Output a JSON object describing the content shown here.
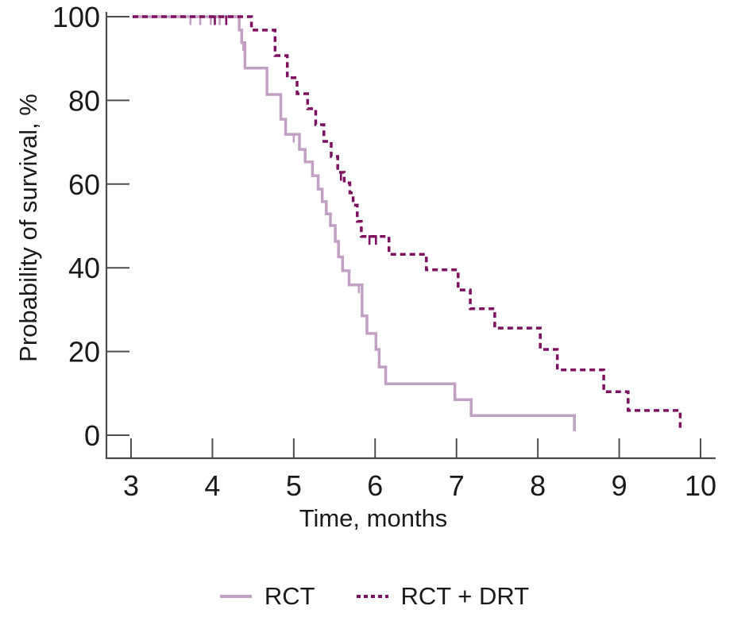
{
  "figure": {
    "kind": "kaplan-meier-survival-plot",
    "legend": [
      {
        "label": "RCT",
        "line_style": "solid",
        "color": "#c2a0c3"
      },
      {
        "label": "RCT + DRT",
        "line_style": "dashed",
        "color": "#7d1160"
      }
    ]
  },
  "chart_data": {
    "type": "line",
    "variant": "kaplan_meier_step",
    "title": "",
    "xlabel": "Time, months",
    "ylabel": "Probability of survival, %",
    "xlim": [
      3,
      10
    ],
    "ylim": [
      0,
      100
    ],
    "x_ticks": [
      3,
      4,
      5,
      6,
      7,
      8,
      9,
      10
    ],
    "y_ticks": [
      0,
      20,
      40,
      60,
      80,
      100
    ],
    "grid": false,
    "legend_position": "bottom",
    "series": [
      {
        "name": "RCT",
        "color": "#c2a0c3",
        "line_style": "solid",
        "points": [
          [
            3.02,
            100
          ],
          [
            4.33,
            96.8
          ],
          [
            4.36,
            93.8
          ],
          [
            4.4,
            87.7
          ],
          [
            4.67,
            81.4
          ],
          [
            4.84,
            75.5
          ],
          [
            4.9,
            71.9
          ],
          [
            5.07,
            68.3
          ],
          [
            5.14,
            65.3
          ],
          [
            5.23,
            62.0
          ],
          [
            5.3,
            58.8
          ],
          [
            5.35,
            55.8
          ],
          [
            5.4,
            52.9
          ],
          [
            5.45,
            50.1
          ],
          [
            5.51,
            46.3
          ],
          [
            5.55,
            42.6
          ],
          [
            5.6,
            39.3
          ],
          [
            5.68,
            35.9
          ],
          [
            5.84,
            28.5
          ],
          [
            5.9,
            24.3
          ],
          [
            6.01,
            20.5
          ],
          [
            6.05,
            16.3
          ],
          [
            6.13,
            12.3
          ],
          [
            6.98,
            8.5
          ],
          [
            7.18,
            4.7
          ],
          [
            8.45,
            0.9
          ]
        ],
        "censor_marks": [
          [
            3.73,
            100
          ],
          [
            3.85,
            100
          ],
          [
            3.98,
            100
          ],
          [
            4.09,
            100
          ],
          [
            4.38,
            93.8
          ],
          [
            5.0,
            71.9
          ],
          [
            5.8,
            35.9
          ]
        ]
      },
      {
        "name": "RCT + DRT",
        "color": "#7d1160",
        "line_style": "dashed",
        "points": [
          [
            3.02,
            100
          ],
          [
            4.48,
            96.8
          ],
          [
            4.77,
            90.7
          ],
          [
            4.92,
            85.4
          ],
          [
            5.04,
            81.6
          ],
          [
            5.17,
            78.0
          ],
          [
            5.27,
            74.2
          ],
          [
            5.37,
            70.2
          ],
          [
            5.46,
            66.6
          ],
          [
            5.54,
            62.8
          ],
          [
            5.62,
            60.3
          ],
          [
            5.69,
            57.9
          ],
          [
            5.73,
            55.0
          ],
          [
            5.78,
            51.1
          ],
          [
            5.83,
            47.5
          ],
          [
            6.17,
            43.2
          ],
          [
            6.63,
            39.5
          ],
          [
            7.02,
            34.7
          ],
          [
            7.17,
            30.2
          ],
          [
            7.47,
            25.6
          ],
          [
            8.03,
            20.5
          ],
          [
            8.24,
            15.6
          ],
          [
            8.81,
            10.4
          ],
          [
            9.11,
            5.9
          ],
          [
            9.75,
            1.0
          ]
        ],
        "censor_marks": [
          [
            4.03,
            100
          ],
          [
            4.17,
            100
          ],
          [
            5.58,
            62.8
          ],
          [
            5.93,
            47.5
          ],
          [
            6.01,
            47.5
          ]
        ]
      }
    ]
  }
}
